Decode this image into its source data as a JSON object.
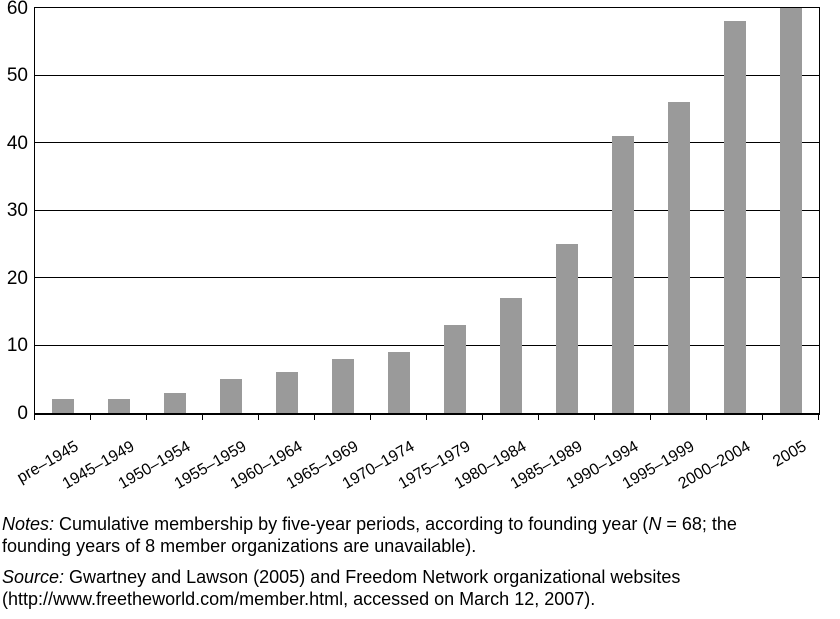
{
  "chart_data": {
    "type": "bar",
    "title": "",
    "xlabel": "",
    "ylabel": "",
    "categories": [
      "pre–1945",
      "1945–1949",
      "1950–1954",
      "1955–1959",
      "1960–1964",
      "1965–1969",
      "1970–1974",
      "1975–1979",
      "1980–1984",
      "1985–1989",
      "1990–1994",
      "1995–1999",
      "2000–2004",
      "2005"
    ],
    "values": [
      2,
      2,
      3,
      5,
      6,
      8,
      9,
      13,
      17,
      25,
      41,
      46,
      58,
      60
    ],
    "ylim": [
      0,
      60
    ],
    "yticks": [
      0,
      10,
      20,
      30,
      40,
      50,
      60
    ],
    "grid": true,
    "legend": false,
    "bar_color": "#9a9a9a",
    "grid_color": "#000000",
    "frame_color": "#000000"
  },
  "notes": {
    "label_italic": "Notes:",
    "line1_a": " Cumulative membership by five-year periods, according to founding year (",
    "line1_n": "N",
    "line1_b": " = 68; the",
    "line2": "founding years of 8 member organizations are unavailable)."
  },
  "source": {
    "label_italic": "Source:",
    "line1": " Gwartney and Lawson (2005) and Freedom Network organizational websites",
    "line2": "(http://www.freetheworld.com/member.html, accessed on March 12, 2007)."
  }
}
